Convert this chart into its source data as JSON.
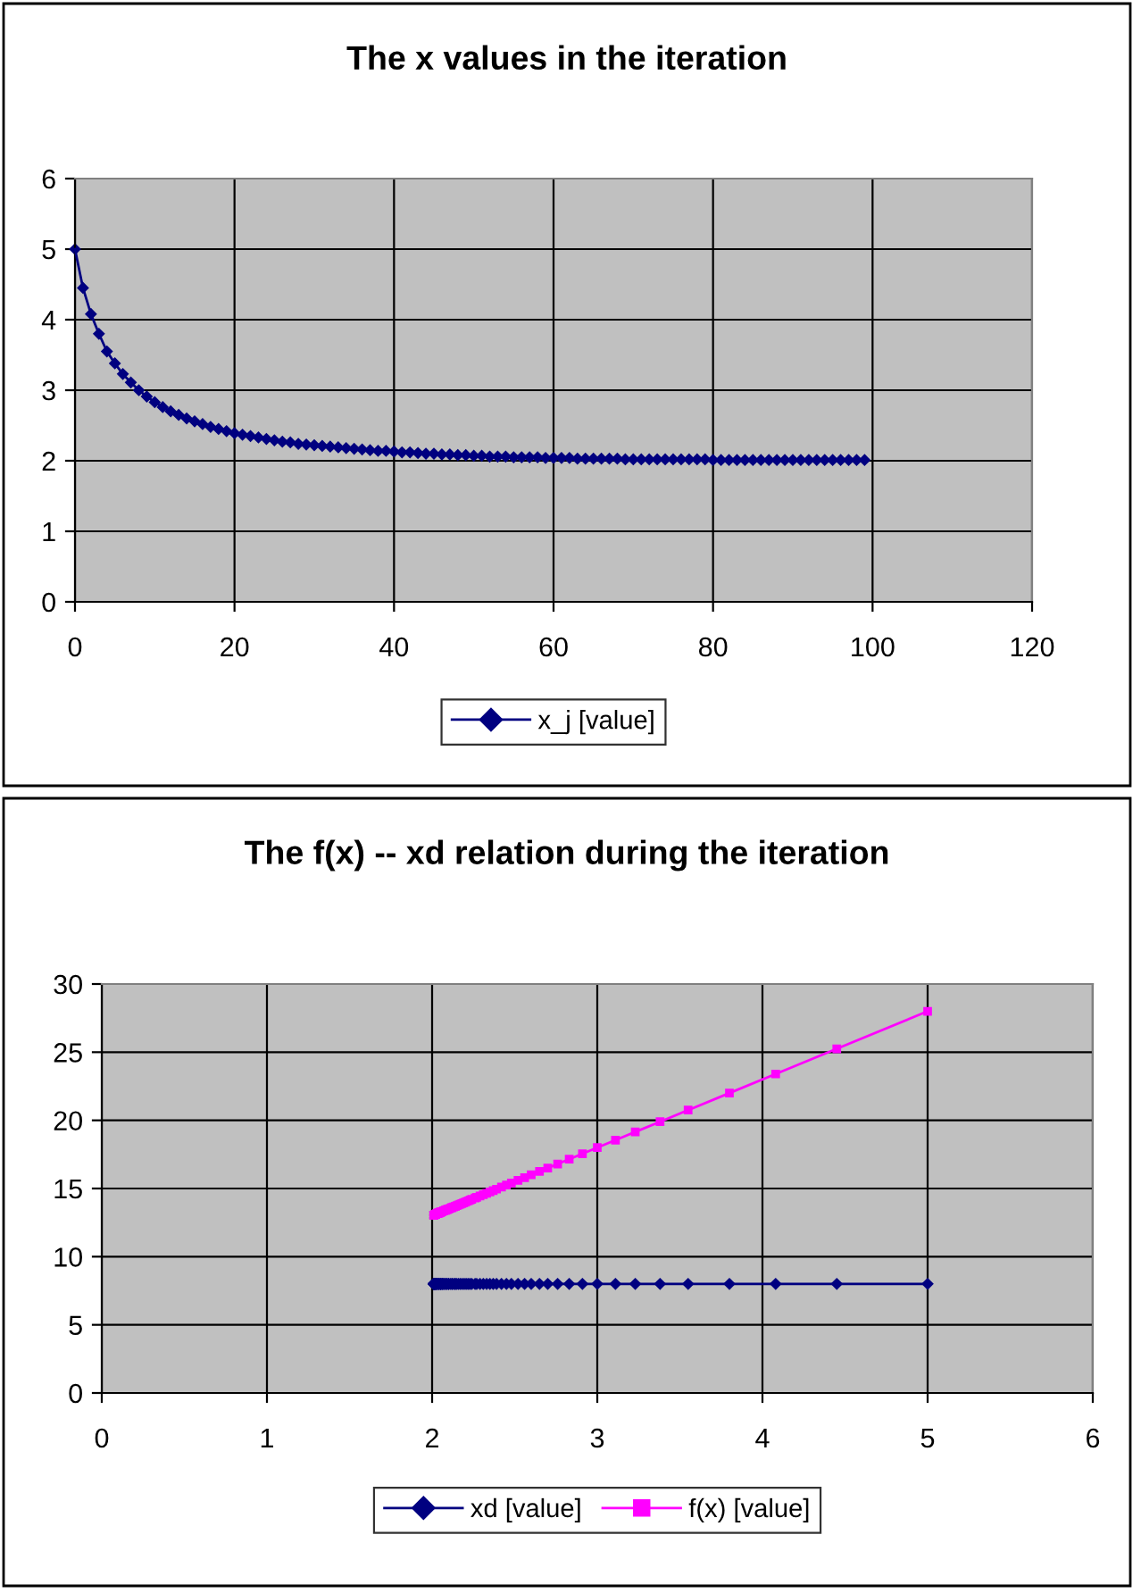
{
  "chart_data": [
    {
      "type": "line",
      "title": "The x values in the iteration",
      "legend": "bottom",
      "grid": true,
      "xlim": [
        0,
        120
      ],
      "xticks": [
        0,
        20,
        40,
        60,
        80,
        100,
        120
      ],
      "ylim": [
        0,
        6
      ],
      "yticks": [
        0,
        1,
        2,
        3,
        4,
        5,
        6
      ],
      "x": [
        0,
        1,
        2,
        3,
        4,
        5,
        6,
        7,
        8,
        9,
        10,
        11,
        12,
        13,
        14,
        15,
        16,
        17,
        18,
        19,
        20,
        21,
        22,
        23,
        24,
        25,
        26,
        27,
        28,
        29,
        30,
        31,
        32,
        33,
        34,
        35,
        36,
        37,
        38,
        39,
        40,
        41,
        42,
        43,
        44,
        45,
        46,
        47,
        48,
        49,
        50,
        51,
        52,
        53,
        54,
        55,
        56,
        57,
        58,
        59,
        60,
        61,
        62,
        63,
        64,
        65,
        66,
        67,
        68,
        69,
        70,
        71,
        72,
        73,
        74,
        75,
        76,
        77,
        78,
        79,
        80,
        81,
        82,
        83,
        84,
        85,
        86,
        87,
        88,
        89,
        90,
        91,
        92,
        93,
        94,
        95,
        96,
        97,
        98,
        99
      ],
      "series": [
        {
          "name": "x_j [value]",
          "color": "#000080",
          "marker": "diamond",
          "values": [
            5.0,
            4.45,
            4.08,
            3.8,
            3.55,
            3.38,
            3.23,
            3.11,
            3.0,
            2.91,
            2.83,
            2.76,
            2.7,
            2.65,
            2.6,
            2.56,
            2.52,
            2.48,
            2.45,
            2.42,
            2.39,
            2.37,
            2.35,
            2.33,
            2.31,
            2.29,
            2.27,
            2.26,
            2.24,
            2.23,
            2.22,
            2.21,
            2.2,
            2.19,
            2.18,
            2.17,
            2.16,
            2.15,
            2.14,
            2.14,
            2.13,
            2.12,
            2.12,
            2.11,
            2.1,
            2.1,
            2.09,
            2.09,
            2.08,
            2.08,
            2.07,
            2.07,
            2.06,
            2.06,
            2.06,
            2.05,
            2.05,
            2.05,
            2.05,
            2.04,
            2.04,
            2.04,
            2.04,
            2.03,
            2.03,
            2.03,
            2.03,
            2.03,
            2.03,
            2.02,
            2.02,
            2.02,
            2.02,
            2.02,
            2.02,
            2.02,
            2.02,
            2.02,
            2.02,
            2.02,
            2.01,
            2.01,
            2.01,
            2.01,
            2.01,
            2.01,
            2.01,
            2.01,
            2.01,
            2.01,
            2.01,
            2.01,
            2.01,
            2.01,
            2.01,
            2.01,
            2.01,
            2.01,
            2.01,
            2.01
          ]
        }
      ]
    },
    {
      "type": "line",
      "title": "The f(x) -- xd relation during the iteration",
      "legend": "bottom",
      "grid": true,
      "xlim": [
        0,
        6
      ],
      "xticks": [
        0,
        1,
        2,
        3,
        4,
        5,
        6
      ],
      "ylim": [
        0,
        30
      ],
      "yticks": [
        0,
        5,
        10,
        15,
        20,
        25,
        30
      ],
      "x": [
        5.0,
        4.45,
        4.08,
        3.8,
        3.55,
        3.38,
        3.23,
        3.11,
        3.0,
        2.91,
        2.83,
        2.76,
        2.7,
        2.65,
        2.6,
        2.56,
        2.52,
        2.48,
        2.45,
        2.42,
        2.39,
        2.37,
        2.35,
        2.33,
        2.31,
        2.29,
        2.27,
        2.26,
        2.24,
        2.23,
        2.22,
        2.21,
        2.2,
        2.19,
        2.18,
        2.17,
        2.16,
        2.15,
        2.14,
        2.14,
        2.13,
        2.12,
        2.12,
        2.11,
        2.1,
        2.1,
        2.09,
        2.09,
        2.08,
        2.08,
        2.07,
        2.07,
        2.06,
        2.06,
        2.06,
        2.05,
        2.05,
        2.05,
        2.05,
        2.04,
        2.04,
        2.04,
        2.04,
        2.03,
        2.03,
        2.03,
        2.03,
        2.03,
        2.03,
        2.02,
        2.02,
        2.02,
        2.02,
        2.02,
        2.02,
        2.02,
        2.02,
        2.02,
        2.02,
        2.02,
        2.01,
        2.01,
        2.01,
        2.01,
        2.01,
        2.01,
        2.01,
        2.01,
        2.01,
        2.01,
        2.01,
        2.01,
        2.01,
        2.01,
        2.01,
        2.01,
        2.01,
        2.01,
        2.01,
        2.01
      ],
      "series": [
        {
          "name": "xd [value]",
          "color": "#000080",
          "marker": "diamond",
          "values": [
            8,
            8,
            8,
            8,
            8,
            8,
            8,
            8,
            8,
            8,
            8,
            8,
            8,
            8,
            8,
            8,
            8,
            8,
            8,
            8,
            8,
            8,
            8,
            8,
            8,
            8,
            8,
            8,
            8,
            8,
            8,
            8,
            8,
            8,
            8,
            8,
            8,
            8,
            8,
            8,
            8,
            8,
            8,
            8,
            8,
            8,
            8,
            8,
            8,
            8,
            8,
            8,
            8,
            8,
            8,
            8,
            8,
            8,
            8,
            8,
            8,
            8,
            8,
            8,
            8,
            8,
            8,
            8,
            8,
            8,
            8,
            8,
            8,
            8,
            8,
            8,
            8,
            8,
            8,
            8,
            8,
            8,
            8,
            8,
            8,
            8,
            8,
            8,
            8,
            8,
            8,
            8,
            8,
            8,
            8,
            8,
            8,
            8,
            8,
            8
          ]
        },
        {
          "name": "f(x) [value]",
          "color": "#ff00ff",
          "marker": "square",
          "values": [
            28.0,
            25.25,
            23.4,
            22.0,
            20.75,
            19.9,
            19.15,
            18.55,
            18.0,
            17.55,
            17.15,
            16.8,
            16.5,
            16.25,
            16.0,
            15.8,
            15.6,
            15.4,
            15.25,
            15.1,
            14.95,
            14.85,
            14.75,
            14.65,
            14.55,
            14.45,
            14.35,
            14.3,
            14.2,
            14.15,
            14.1,
            14.05,
            14.0,
            13.95,
            13.9,
            13.85,
            13.8,
            13.75,
            13.7,
            13.7,
            13.65,
            13.6,
            13.6,
            13.55,
            13.5,
            13.5,
            13.45,
            13.45,
            13.4,
            13.4,
            13.35,
            13.35,
            13.3,
            13.3,
            13.3,
            13.25,
            13.25,
            13.25,
            13.25,
            13.2,
            13.2,
            13.2,
            13.2,
            13.15,
            13.15,
            13.15,
            13.15,
            13.15,
            13.15,
            13.1,
            13.1,
            13.1,
            13.1,
            13.1,
            13.1,
            13.1,
            13.1,
            13.1,
            13.1,
            13.1,
            13.05,
            13.05,
            13.05,
            13.05,
            13.05,
            13.05,
            13.05,
            13.05,
            13.05,
            13.05,
            13.05,
            13.05,
            13.05,
            13.05,
            13.05,
            13.05,
            13.05,
            13.05,
            13.05,
            13.05
          ]
        }
      ]
    }
  ]
}
